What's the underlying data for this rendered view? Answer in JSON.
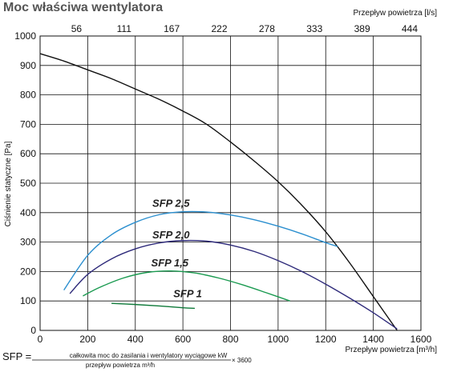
{
  "chart_data": {
    "type": "line",
    "title": "Moc właściwa wentylatora",
    "xlabel": "Przepływ powietrza [m³/h]",
    "ylabel": "Ciśnienie statyczne [Pa]",
    "x2label": "Przepływ powietrza [l/s]",
    "xlim": [
      0,
      1600
    ],
    "ylim": [
      0,
      1000
    ],
    "xticks": [
      0,
      200,
      400,
      600,
      800,
      1000,
      1200,
      1400,
      1600
    ],
    "yticks": [
      0,
      100,
      200,
      300,
      400,
      500,
      600,
      700,
      800,
      900,
      1000
    ],
    "x2ticks": [
      {
        "label": "56",
        "at_m3h": 200
      },
      {
        "label": "111",
        "at_m3h": 400
      },
      {
        "label": "167",
        "at_m3h": 600
      },
      {
        "label": "222",
        "at_m3h": 800
      },
      {
        "label": "278",
        "at_m3h": 1000
      },
      {
        "label": "333",
        "at_m3h": 1200
      },
      {
        "label": "389",
        "at_m3h": 1400
      },
      {
        "label": "444",
        "at_m3h": 1600
      }
    ],
    "grid": true,
    "series": [
      {
        "color": "#111111",
        "points": [
          [
            0,
            940
          ],
          [
            100,
            915
          ],
          [
            200,
            885
          ],
          [
            300,
            855
          ],
          [
            400,
            820
          ],
          [
            500,
            785
          ],
          [
            600,
            745
          ],
          [
            700,
            700
          ],
          [
            800,
            640
          ],
          [
            900,
            575
          ],
          [
            1000,
            505
          ],
          [
            1100,
            425
          ],
          [
            1200,
            335
          ],
          [
            1300,
            230
          ],
          [
            1400,
            115
          ],
          [
            1500,
            0
          ]
        ]
      },
      {
        "name": "SFP 2,5",
        "color": "#2b8fcf",
        "label_point": [
          550,
          420
        ],
        "points": [
          [
            100,
            137
          ],
          [
            200,
            255
          ],
          [
            300,
            325
          ],
          [
            400,
            367
          ],
          [
            500,
            393
          ],
          [
            600,
            403
          ],
          [
            700,
            402
          ],
          [
            800,
            392
          ],
          [
            900,
            376
          ],
          [
            1000,
            354
          ],
          [
            1100,
            328
          ],
          [
            1200,
            298
          ],
          [
            1250,
            285
          ]
        ]
      },
      {
        "name": "SFP 2,0",
        "color": "#2e2a7a",
        "label_point": [
          550,
          313
        ],
        "points": [
          [
            125,
            125
          ],
          [
            200,
            190
          ],
          [
            300,
            243
          ],
          [
            400,
            277
          ],
          [
            500,
            297
          ],
          [
            600,
            305
          ],
          [
            700,
            303
          ],
          [
            800,
            290
          ],
          [
            900,
            268
          ],
          [
            1000,
            237
          ],
          [
            1100,
            200
          ],
          [
            1200,
            157
          ],
          [
            1300,
            110
          ],
          [
            1400,
            60
          ],
          [
            1500,
            5
          ]
        ]
      },
      {
        "name": "SFP 1,5",
        "color": "#1a9a50",
        "label_point": [
          545,
          218
        ],
        "points": [
          [
            180,
            117
          ],
          [
            250,
            146
          ],
          [
            350,
            178
          ],
          [
            450,
            197
          ],
          [
            550,
            202
          ],
          [
            650,
            195
          ],
          [
            750,
            178
          ],
          [
            850,
            155
          ],
          [
            950,
            128
          ],
          [
            1050,
            100
          ]
        ]
      },
      {
        "name": "SFP 1",
        "color": "#0f7a3a",
        "label_point": [
          620,
          113
        ],
        "points": [
          [
            300,
            92
          ],
          [
            400,
            88
          ],
          [
            500,
            83
          ],
          [
            600,
            77
          ],
          [
            650,
            75
          ]
        ]
      }
    ]
  },
  "formula": {
    "lhs": "SFP =",
    "numerator": "całkowita moc do zasilania i wentylatory wyciągowe kW",
    "denominator": "przepływ powietrza m³/h",
    "multiplier": "× 3600"
  }
}
